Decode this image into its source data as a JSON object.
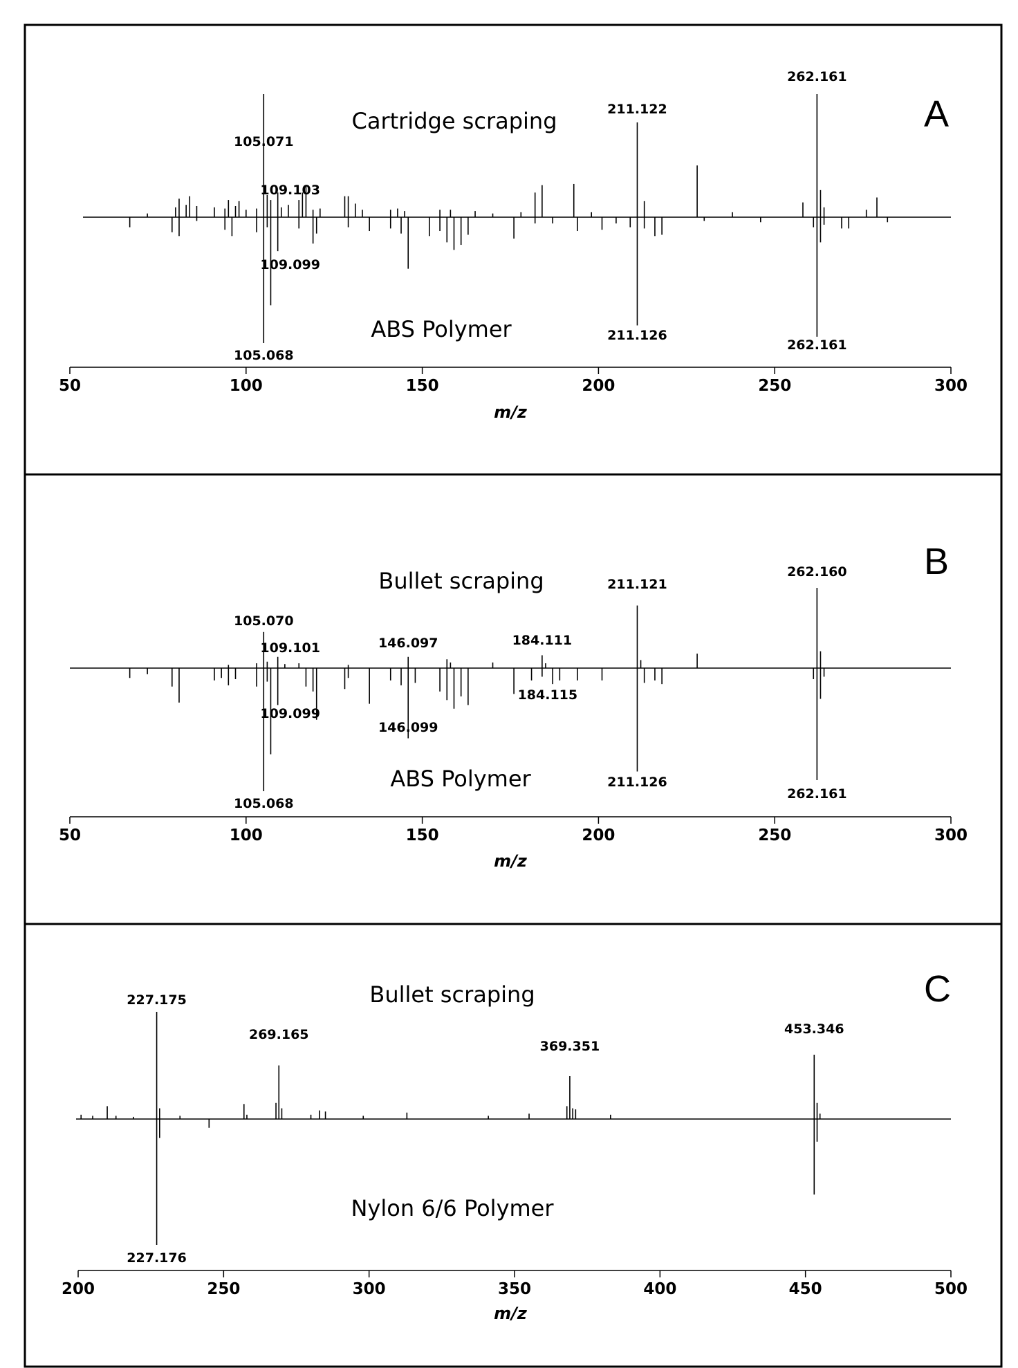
{
  "chart_data": [
    {
      "type": "bar",
      "panel_letter": "A",
      "upper_title": "Cartridge scraping",
      "lower_title": "ABS Polymer",
      "xlabel": "m/z",
      "xlim": [
        50,
        300
      ],
      "x_ticks": [
        50,
        100,
        150,
        200,
        250,
        300
      ],
      "series": [
        {
          "direction": "up",
          "peaks": [
            {
              "x": 72,
              "y": 3
            },
            {
              "x": 80,
              "y": 8
            },
            {
              "x": 81,
              "y": 15
            },
            {
              "x": 83,
              "y": 10
            },
            {
              "x": 84,
              "y": 17
            },
            {
              "x": 86,
              "y": 9
            },
            {
              "x": 91,
              "y": 8
            },
            {
              "x": 94,
              "y": 7
            },
            {
              "x": 95,
              "y": 14
            },
            {
              "x": 97,
              "y": 9
            },
            {
              "x": 98,
              "y": 13
            },
            {
              "x": 100,
              "y": 6
            },
            {
              "x": 103,
              "y": 7
            },
            {
              "x": 105,
              "y": 100
            },
            {
              "x": 106,
              "y": 18
            },
            {
              "x": 107,
              "y": 14
            },
            {
              "x": 109,
              "y": 20
            },
            {
              "x": 110,
              "y": 8
            },
            {
              "x": 112,
              "y": 10
            },
            {
              "x": 115,
              "y": 14
            },
            {
              "x": 116,
              "y": 20
            },
            {
              "x": 117,
              "y": 26
            },
            {
              "x": 119,
              "y": 6
            },
            {
              "x": 121,
              "y": 7
            },
            {
              "x": 128,
              "y": 17
            },
            {
              "x": 129,
              "y": 17
            },
            {
              "x": 131,
              "y": 11
            },
            {
              "x": 133,
              "y": 6
            },
            {
              "x": 141,
              "y": 6
            },
            {
              "x": 143,
              "y": 7
            },
            {
              "x": 145,
              "y": 5
            },
            {
              "x": 155,
              "y": 6
            },
            {
              "x": 158,
              "y": 6
            },
            {
              "x": 165,
              "y": 5
            },
            {
              "x": 170,
              "y": 3
            },
            {
              "x": 178,
              "y": 4
            },
            {
              "x": 182,
              "y": 20
            },
            {
              "x": 184,
              "y": 26
            },
            {
              "x": 193,
              "y": 27
            },
            {
              "x": 198,
              "y": 4
            },
            {
              "x": 211,
              "y": 77
            },
            {
              "x": 213,
              "y": 13
            },
            {
              "x": 228,
              "y": 42
            },
            {
              "x": 238,
              "y": 4
            },
            {
              "x": 258,
              "y": 12
            },
            {
              "x": 262,
              "y": 100
            },
            {
              "x": 263,
              "y": 22
            },
            {
              "x": 264,
              "y": 8
            },
            {
              "x": 276,
              "y": 6
            },
            {
              "x": 279,
              "y": 16
            }
          ]
        },
        {
          "direction": "down",
          "peaks": [
            {
              "x": 67,
              "y": 8
            },
            {
              "x": 79,
              "y": 12
            },
            {
              "x": 81,
              "y": 15
            },
            {
              "x": 86,
              "y": 3
            },
            {
              "x": 94,
              "y": 10
            },
            {
              "x": 96,
              "y": 15
            },
            {
              "x": 103,
              "y": 12
            },
            {
              "x": 105,
              "y": 100
            },
            {
              "x": 106,
              "y": 8
            },
            {
              "x": 107,
              "y": 70
            },
            {
              "x": 109,
              "y": 27
            },
            {
              "x": 115,
              "y": 9
            },
            {
              "x": 119,
              "y": 21
            },
            {
              "x": 120,
              "y": 13
            },
            {
              "x": 129,
              "y": 8
            },
            {
              "x": 135,
              "y": 11
            },
            {
              "x": 141,
              "y": 9
            },
            {
              "x": 144,
              "y": 13
            },
            {
              "x": 146,
              "y": 41
            },
            {
              "x": 152,
              "y": 15
            },
            {
              "x": 155,
              "y": 11
            },
            {
              "x": 157,
              "y": 20
            },
            {
              "x": 159,
              "y": 26
            },
            {
              "x": 161,
              "y": 22
            },
            {
              "x": 163,
              "y": 14
            },
            {
              "x": 176,
              "y": 17
            },
            {
              "x": 182,
              "y": 5
            },
            {
              "x": 187,
              "y": 5
            },
            {
              "x": 194,
              "y": 11
            },
            {
              "x": 201,
              "y": 10
            },
            {
              "x": 205,
              "y": 5
            },
            {
              "x": 209,
              "y": 8
            },
            {
              "x": 211,
              "y": 86
            },
            {
              "x": 213,
              "y": 9
            },
            {
              "x": 216,
              "y": 15
            },
            {
              "x": 218,
              "y": 14
            },
            {
              "x": 230,
              "y": 3
            },
            {
              "x": 246,
              "y": 4
            },
            {
              "x": 261,
              "y": 8
            },
            {
              "x": 262,
              "y": 95
            },
            {
              "x": 263,
              "y": 20
            },
            {
              "x": 264,
              "y": 6
            },
            {
              "x": 269,
              "y": 9
            },
            {
              "x": 271,
              "y": 9
            },
            {
              "x": 282,
              "y": 4
            }
          ]
        }
      ],
      "peak_labels": [
        {
          "text": "105.071",
          "x": 105,
          "side": "up"
        },
        {
          "text": "109.103",
          "x": 109,
          "side": "up"
        },
        {
          "text": "211.122",
          "x": 211,
          "side": "up"
        },
        {
          "text": "262.161",
          "x": 262,
          "side": "up"
        },
        {
          "text": "109.099",
          "x": 109,
          "side": "down"
        },
        {
          "text": "105.068",
          "x": 105,
          "side": "down"
        },
        {
          "text": "211.126",
          "x": 211,
          "side": "down"
        },
        {
          "text": "262.161",
          "x": 262,
          "side": "down"
        }
      ]
    },
    {
      "type": "bar",
      "panel_letter": "B",
      "upper_title": "Bullet  scraping",
      "lower_title": "ABS Polymer",
      "xlabel": "m/z",
      "xlim": [
        50,
        300
      ],
      "x_ticks": [
        50,
        100,
        150,
        200,
        250,
        300
      ],
      "series": [
        {
          "direction": "up",
          "peaks": [
            {
              "x": 95,
              "y": 4
            },
            {
              "x": 103,
              "y": 6
            },
            {
              "x": 105,
              "y": 45
            },
            {
              "x": 106,
              "y": 8
            },
            {
              "x": 109,
              "y": 14
            },
            {
              "x": 111,
              "y": 5
            },
            {
              "x": 115,
              "y": 6
            },
            {
              "x": 129,
              "y": 4
            },
            {
              "x": 146,
              "y": 14
            },
            {
              "x": 157,
              "y": 11
            },
            {
              "x": 158,
              "y": 7
            },
            {
              "x": 170,
              "y": 7
            },
            {
              "x": 184,
              "y": 16
            },
            {
              "x": 185,
              "y": 6
            },
            {
              "x": 211,
              "y": 78
            },
            {
              "x": 212,
              "y": 10
            },
            {
              "x": 228,
              "y": 18
            },
            {
              "x": 262,
              "y": 100
            },
            {
              "x": 263,
              "y": 21
            }
          ]
        },
        {
          "direction": "down",
          "peaks": [
            {
              "x": 67,
              "y": 8
            },
            {
              "x": 72,
              "y": 5
            },
            {
              "x": 79,
              "y": 15
            },
            {
              "x": 81,
              "y": 28
            },
            {
              "x": 91,
              "y": 10
            },
            {
              "x": 93,
              "y": 8
            },
            {
              "x": 95,
              "y": 14
            },
            {
              "x": 97,
              "y": 9
            },
            {
              "x": 103,
              "y": 15
            },
            {
              "x": 105,
              "y": 100
            },
            {
              "x": 106,
              "y": 11
            },
            {
              "x": 107,
              "y": 70
            },
            {
              "x": 109,
              "y": 30
            },
            {
              "x": 117,
              "y": 15
            },
            {
              "x": 119,
              "y": 19
            },
            {
              "x": 120,
              "y": 42
            },
            {
              "x": 128,
              "y": 17
            },
            {
              "x": 129,
              "y": 8
            },
            {
              "x": 135,
              "y": 29
            },
            {
              "x": 141,
              "y": 10
            },
            {
              "x": 144,
              "y": 14
            },
            {
              "x": 146,
              "y": 57
            },
            {
              "x": 148,
              "y": 12
            },
            {
              "x": 155,
              "y": 19
            },
            {
              "x": 157,
              "y": 26
            },
            {
              "x": 159,
              "y": 33
            },
            {
              "x": 161,
              "y": 23
            },
            {
              "x": 163,
              "y": 30
            },
            {
              "x": 176,
              "y": 21
            },
            {
              "x": 181,
              "y": 10
            },
            {
              "x": 184,
              "y": 7
            },
            {
              "x": 187,
              "y": 13
            },
            {
              "x": 189,
              "y": 10
            },
            {
              "x": 194,
              "y": 10
            },
            {
              "x": 201,
              "y": 10
            },
            {
              "x": 211,
              "y": 84
            },
            {
              "x": 213,
              "y": 12
            },
            {
              "x": 216,
              "y": 10
            },
            {
              "x": 218,
              "y": 13
            },
            {
              "x": 261,
              "y": 9
            },
            {
              "x": 262,
              "y": 91
            },
            {
              "x": 263,
              "y": 25
            },
            {
              "x": 264,
              "y": 7
            }
          ]
        }
      ],
      "peak_labels": [
        {
          "text": "105.070",
          "x": 105,
          "side": "up"
        },
        {
          "text": "109.101",
          "x": 109,
          "side": "up"
        },
        {
          "text": "146.097",
          "x": 146,
          "side": "up"
        },
        {
          "text": "184.111",
          "x": 184,
          "side": "up"
        },
        {
          "text": "211.121",
          "x": 211,
          "side": "up"
        },
        {
          "text": "262.160",
          "x": 262,
          "side": "up"
        },
        {
          "text": "109.099",
          "x": 109,
          "side": "down"
        },
        {
          "text": "146.099",
          "x": 146,
          "side": "down"
        },
        {
          "text": "184.115",
          "x": 184,
          "side": "down"
        },
        {
          "text": "105.068",
          "x": 105,
          "side": "down"
        },
        {
          "text": "211.126",
          "x": 211,
          "side": "down"
        },
        {
          "text": "262.161",
          "x": 262,
          "side": "down"
        }
      ]
    },
    {
      "type": "bar",
      "panel_letter": "C",
      "upper_title": "Bullet  scraping",
      "lower_title": "Nylon 6/6 Polymer",
      "xlabel": "m/z",
      "xlim": [
        200,
        500
      ],
      "x_ticks": [
        200,
        250,
        300,
        350,
        400,
        450,
        500
      ],
      "series": [
        {
          "direction": "up",
          "peaks": [
            {
              "x": 201,
              "y": 4
            },
            {
              "x": 205,
              "y": 3
            },
            {
              "x": 210,
              "y": 12
            },
            {
              "x": 213,
              "y": 3
            },
            {
              "x": 219,
              "y": 2
            },
            {
              "x": 227,
              "y": 100
            },
            {
              "x": 228,
              "y": 10
            },
            {
              "x": 235,
              "y": 3
            },
            {
              "x": 257,
              "y": 14
            },
            {
              "x": 258,
              "y": 4
            },
            {
              "x": 268,
              "y": 15
            },
            {
              "x": 269,
              "y": 50
            },
            {
              "x": 270,
              "y": 10
            },
            {
              "x": 280,
              "y": 4
            },
            {
              "x": 283,
              "y": 8
            },
            {
              "x": 285,
              "y": 7
            },
            {
              "x": 298,
              "y": 3
            },
            {
              "x": 313,
              "y": 6
            },
            {
              "x": 341,
              "y": 3
            },
            {
              "x": 355,
              "y": 5
            },
            {
              "x": 368,
              "y": 12
            },
            {
              "x": 369,
              "y": 40
            },
            {
              "x": 370,
              "y": 10
            },
            {
              "x": 371,
              "y": 9
            },
            {
              "x": 383,
              "y": 4
            },
            {
              "x": 453,
              "y": 60
            },
            {
              "x": 454,
              "y": 15
            },
            {
              "x": 455,
              "y": 5
            }
          ]
        },
        {
          "direction": "down",
          "peaks": [
            {
              "x": 227,
              "y": 100
            },
            {
              "x": 228,
              "y": 15
            },
            {
              "x": 245,
              "y": 7
            },
            {
              "x": 453,
              "y": 60
            },
            {
              "x": 454,
              "y": 18
            }
          ]
        }
      ],
      "peak_labels": [
        {
          "text": "227.175",
          "x": 227,
          "side": "up"
        },
        {
          "text": "269.165",
          "x": 269,
          "side": "up"
        },
        {
          "text": "369.351",
          "x": 369,
          "side": "up"
        },
        {
          "text": "453.346",
          "x": 453,
          "side": "up"
        },
        {
          "text": "227.176",
          "x": 227,
          "side": "down"
        }
      ]
    }
  ]
}
